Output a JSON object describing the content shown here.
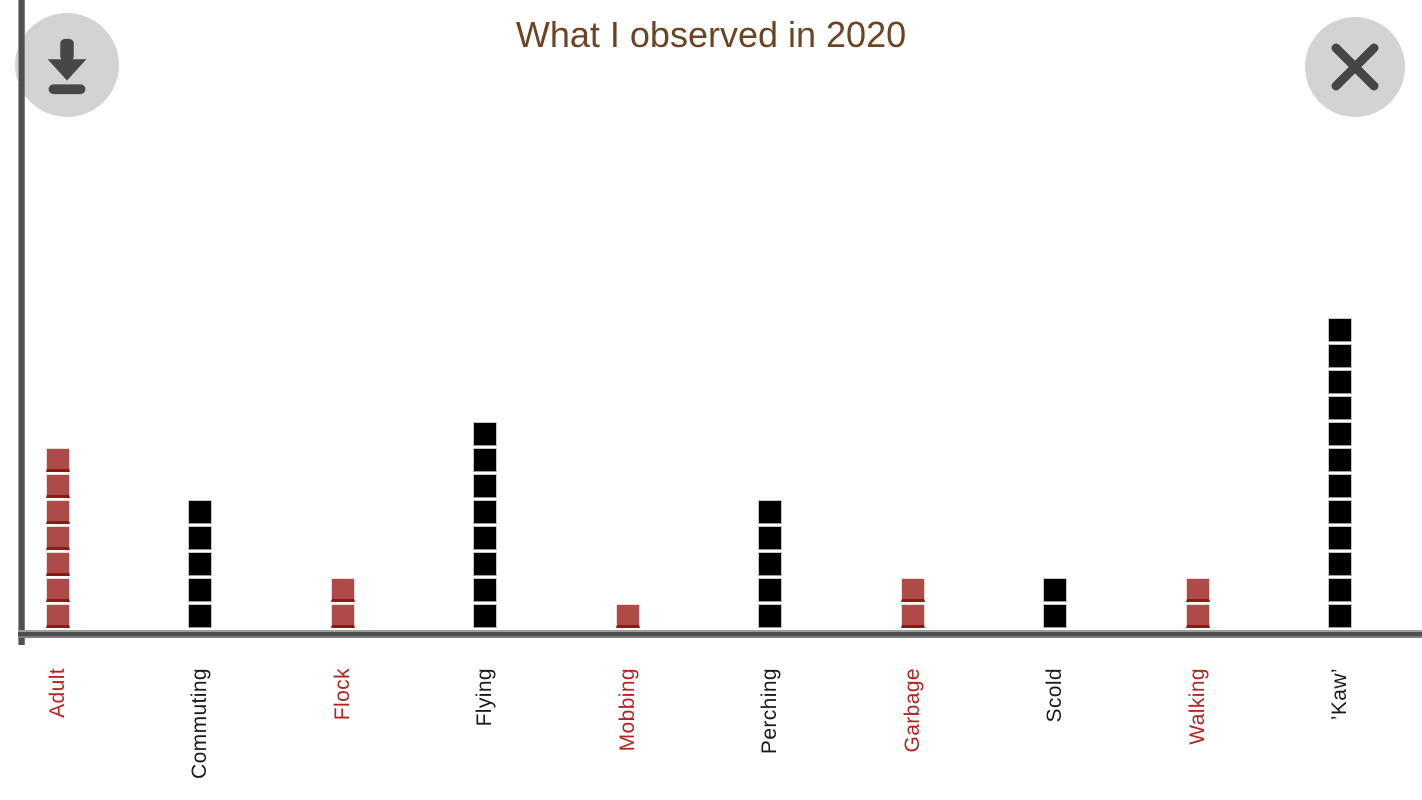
{
  "toolbar": {
    "buttons": [
      {
        "name": "download",
        "icon": "download-icon"
      },
      {
        "name": "close",
        "icon": "close-x-icon"
      }
    ]
  },
  "chart_data": {
    "type": "bar",
    "variant": "unit-square-stack",
    "title": "What I observed in 2020",
    "title_color": "#6b4423",
    "categories": [
      "Adult",
      "Commuting",
      "Flock",
      "Flying",
      "Mobbing",
      "Perching",
      "Garbage",
      "Scold",
      "Walking",
      "’Kaw’"
    ],
    "values": [
      7,
      5,
      2,
      8,
      1,
      5,
      2,
      2,
      2,
      12
    ],
    "bar_colors": [
      "#ae4a47",
      "#000000",
      "#ae4a47",
      "#000000",
      "#ae4a47",
      "#000000",
      "#ae4a47",
      "#000000",
      "#ae4a47",
      "#000000"
    ],
    "label_colors": [
      "#b3241f",
      "#1a1a1a",
      "#b3241f",
      "#1a1a1a",
      "#b3241f",
      "#1a1a1a",
      "#b3241f",
      "#1a1a1a",
      "#b3241f",
      "#1a1a1a"
    ],
    "unit_value": 1,
    "ylim": [
      0,
      12
    ],
    "xlabel": "",
    "ylabel": "",
    "grid": false,
    "legend": null,
    "axis_color": "#58585a",
    "background": "#ffffff"
  }
}
